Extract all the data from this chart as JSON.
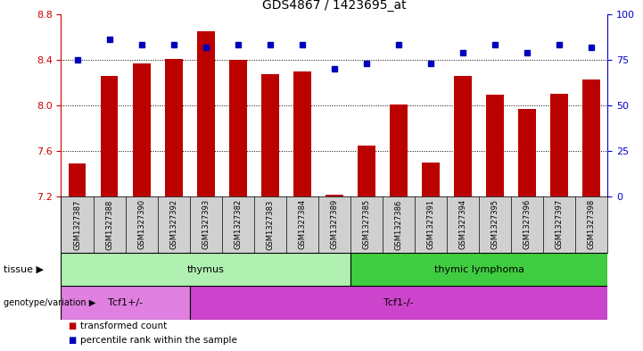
{
  "title": "GDS4867 / 1423695_at",
  "samples": [
    "GSM1327387",
    "GSM1327388",
    "GSM1327390",
    "GSM1327392",
    "GSM1327393",
    "GSM1327382",
    "GSM1327383",
    "GSM1327384",
    "GSM1327389",
    "GSM1327385",
    "GSM1327386",
    "GSM1327391",
    "GSM1327394",
    "GSM1327395",
    "GSM1327396",
    "GSM1327397",
    "GSM1327398"
  ],
  "transformed_count": [
    7.49,
    8.26,
    8.37,
    8.41,
    8.65,
    8.4,
    8.27,
    8.3,
    7.22,
    7.65,
    8.01,
    7.5,
    8.26,
    8.09,
    7.97,
    8.1,
    8.23
  ],
  "percentile_rank": [
    75,
    86,
    83,
    83,
    82,
    83,
    83,
    83,
    70,
    73,
    83,
    73,
    79,
    83,
    79,
    83,
    82
  ],
  "ylim_left": [
    7.2,
    8.8
  ],
  "ylim_right": [
    0,
    100
  ],
  "yticks_left": [
    7.2,
    7.6,
    8.0,
    8.4,
    8.8
  ],
  "yticks_right": [
    0,
    25,
    50,
    75,
    100
  ],
  "gridlines_at": [
    7.6,
    8.0,
    8.4
  ],
  "tissue_groups": [
    {
      "label": "thymus",
      "start": 0,
      "end": 8,
      "color": "#b0f0b0"
    },
    {
      "label": "thymic lymphoma",
      "start": 9,
      "end": 16,
      "color": "#40cc40"
    }
  ],
  "genotype_groups": [
    {
      "label": "Tcf1+/-",
      "start": 0,
      "end": 3,
      "color": "#e080e0"
    },
    {
      "label": "Tcf1-/-",
      "start": 4,
      "end": 16,
      "color": "#cc44cc"
    }
  ],
  "bar_color": "#bb0000",
  "dot_color": "#0000bb",
  "tick_color_left": "#cc0000",
  "tick_color_right": "#0000cc",
  "sample_bg_color": "#d0d0d0",
  "legend_items": [
    {
      "label": "transformed count",
      "color": "#bb0000"
    },
    {
      "label": "percentile rank within the sample",
      "color": "#0000bb"
    }
  ],
  "label_tissue": "tissue",
  "label_geno": "genotype/variation"
}
